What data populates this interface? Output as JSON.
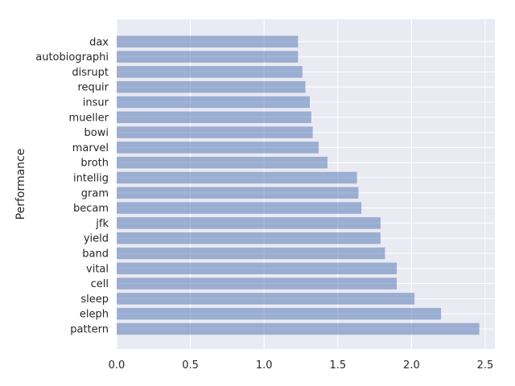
{
  "chart_data": {
    "type": "bar",
    "orientation": "horizontal",
    "categories": [
      "pattern",
      "eleph",
      "sleep",
      "cell",
      "vital",
      "band",
      "yield",
      "jfk",
      "becam",
      "gram",
      "intellig",
      "broth",
      "marvel",
      "bowi",
      "mueller",
      "insur",
      "requir",
      "disrupt",
      "autobiographi",
      "dax"
    ],
    "values": [
      2.46,
      2.2,
      2.02,
      1.9,
      1.9,
      1.82,
      1.79,
      1.79,
      1.66,
      1.64,
      1.63,
      1.43,
      1.37,
      1.33,
      1.32,
      1.31,
      1.28,
      1.26,
      1.23,
      1.23
    ],
    "xlabel": "",
    "ylabel": "Performance",
    "xlim": [
      0,
      2.55
    ],
    "xticks": [
      "0.0",
      "0.5",
      "1.0",
      "1.5",
      "2.0",
      "2.5"
    ],
    "grid": true,
    "style": {
      "background": "#eaeaf2",
      "bar_color": "#4c72b0",
      "bar_alpha": 0.5,
      "grid_color": "#ffffff"
    }
  }
}
